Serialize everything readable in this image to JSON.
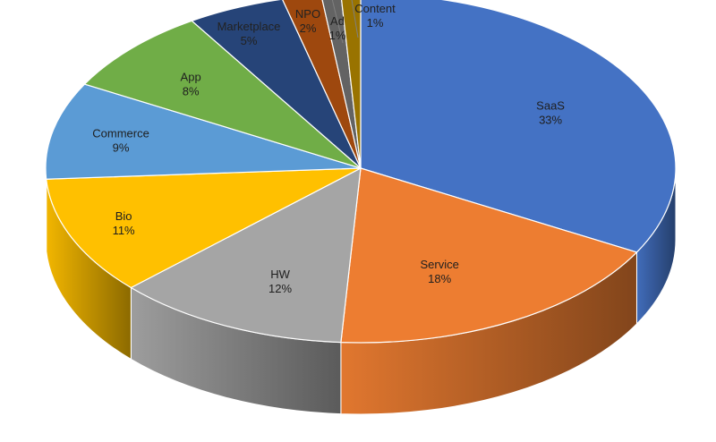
{
  "chart_data": {
    "type": "pie",
    "title": "",
    "legend": "none",
    "slices": [
      {
        "label": "SaaS",
        "value": 33,
        "percent_label": "33%",
        "color": "#4472C4"
      },
      {
        "label": "Service",
        "value": 18,
        "percent_label": "18%",
        "color": "#ED7D31"
      },
      {
        "label": "HW",
        "value": 12,
        "percent_label": "12%",
        "color": "#A5A5A5"
      },
      {
        "label": "Bio",
        "value": 11,
        "percent_label": "11%",
        "color": "#FFC000"
      },
      {
        "label": "Commerce",
        "value": 9,
        "percent_label": "9%",
        "color": "#5B9BD5"
      },
      {
        "label": "App",
        "value": 8,
        "percent_label": "8%",
        "color": "#70AD47"
      },
      {
        "label": "Marketplace",
        "value": 5,
        "percent_label": "5%",
        "color": "#264478"
      },
      {
        "label": "NPO",
        "value": 2,
        "percent_label": "2%",
        "color": "#9E480E"
      },
      {
        "label": "Ad",
        "value": 1,
        "percent_label": "1%",
        "color": "#636363"
      },
      {
        "label": "Content",
        "value": 1,
        "percent_label": "1%",
        "color": "#997300"
      }
    ]
  }
}
